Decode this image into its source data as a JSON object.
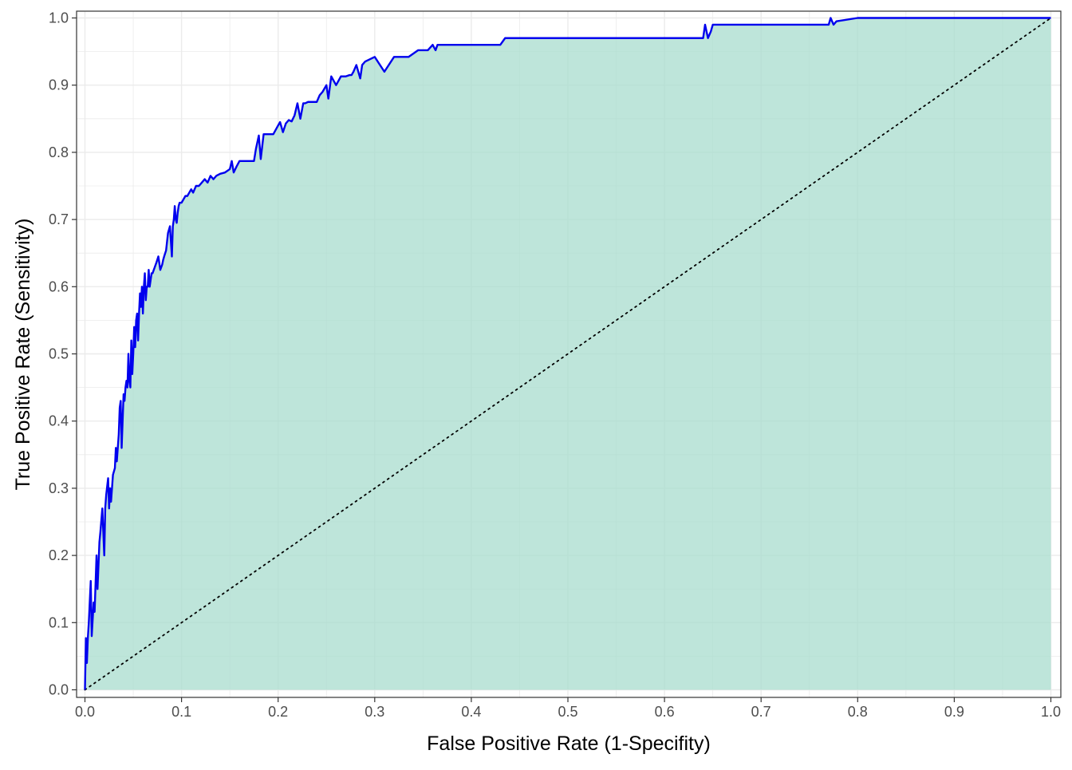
{
  "chart_data": {
    "type": "area",
    "title": "",
    "xlabel": "False Positive Rate (1-Specifity)",
    "ylabel": "True Positive Rate (Sensitivity)",
    "xlim": [
      0,
      1
    ],
    "ylim": [
      0,
      1
    ],
    "x_ticks": [
      "0.0",
      "0.1",
      "0.2",
      "0.3",
      "0.4",
      "0.5",
      "0.6",
      "0.7",
      "0.8",
      "0.9",
      "1.0"
    ],
    "y_ticks": [
      "0.0",
      "0.1",
      "0.2",
      "0.3",
      "0.4",
      "0.5",
      "0.6",
      "0.7",
      "0.8",
      "0.9",
      "1.0"
    ],
    "grid": true,
    "legend": "none",
    "colors": {
      "roc_line": "#0000ee",
      "area_fill": "#a8dccd",
      "reference_line": "#000000",
      "grid": "#ebebeb",
      "panel_border": "#333333"
    },
    "reference_line": {
      "name": "",
      "x": [
        0,
        1
      ],
      "y": [
        0,
        1
      ]
    },
    "series": [
      {
        "name": "",
        "x": [
          0,
          0.001,
          0.002,
          0.003,
          0.004,
          0.006,
          0.007,
          0.009,
          0.01,
          0.012,
          0.013,
          0.015,
          0.016,
          0.018,
          0.02,
          0.021,
          0.022,
          0.024,
          0.025,
          0.026,
          0.027,
          0.029,
          0.031,
          0.032,
          0.033,
          0.035,
          0.036,
          0.037,
          0.038,
          0.04,
          0.041,
          0.042,
          0.043,
          0.044,
          0.045,
          0.046,
          0.047,
          0.048,
          0.049,
          0.05,
          0.051,
          0.052,
          0.053,
          0.054,
          0.055,
          0.056,
          0.057,
          0.058,
          0.059,
          0.06,
          0.061,
          0.062,
          0.063,
          0.064,
          0.065,
          0.066,
          0.067,
          0.068,
          0.069,
          0.07,
          0.072,
          0.074,
          0.076,
          0.078,
          0.08,
          0.081,
          0.082,
          0.084,
          0.086,
          0.088,
          0.09,
          0.091,
          0.092,
          0.093,
          0.094,
          0.095,
          0.096,
          0.097,
          0.098,
          0.1,
          0.102,
          0.104,
          0.106,
          0.108,
          0.11,
          0.112,
          0.115,
          0.118,
          0.121,
          0.124,
          0.127,
          0.13,
          0.133,
          0.136,
          0.14,
          0.145,
          0.15,
          0.152,
          0.154,
          0.157,
          0.16,
          0.165,
          0.17,
          0.175,
          0.177,
          0.18,
          0.182,
          0.185,
          0.19,
          0.195,
          0.2,
          0.202,
          0.205,
          0.208,
          0.211,
          0.214,
          0.217,
          0.22,
          0.223,
          0.226,
          0.228,
          0.231,
          0.236,
          0.24,
          0.243,
          0.246,
          0.248,
          0.25,
          0.252,
          0.255,
          0.26,
          0.265,
          0.27,
          0.274,
          0.276,
          0.278,
          0.281,
          0.285,
          0.287,
          0.29,
          0.3,
          0.31,
          0.32,
          0.33,
          0.335,
          0.345,
          0.35,
          0.355,
          0.36,
          0.363,
          0.365,
          0.38,
          0.4,
          0.42,
          0.43,
          0.435,
          0.45,
          0.5,
          0.55,
          0.6,
          0.62,
          0.64,
          0.642,
          0.645,
          0.648,
          0.65,
          0.7,
          0.75,
          0.77,
          0.772,
          0.775,
          0.778,
          0.8,
          0.85,
          0.9,
          0.95,
          1.0
        ],
        "values": [
          0,
          0.077,
          0.04,
          0.077,
          0.1,
          0.162,
          0.08,
          0.13,
          0.116,
          0.2,
          0.15,
          0.22,
          0.235,
          0.27,
          0.2,
          0.27,
          0.29,
          0.315,
          0.27,
          0.3,
          0.28,
          0.32,
          0.33,
          0.36,
          0.34,
          0.38,
          0.42,
          0.43,
          0.36,
          0.44,
          0.43,
          0.45,
          0.46,
          0.45,
          0.5,
          0.46,
          0.45,
          0.52,
          0.47,
          0.5,
          0.54,
          0.51,
          0.55,
          0.56,
          0.52,
          0.56,
          0.59,
          0.57,
          0.6,
          0.56,
          0.6,
          0.62,
          0.58,
          0.6,
          0.6,
          0.625,
          0.6,
          0.61,
          0.62,
          0.62,
          0.628,
          0.636,
          0.645,
          0.625,
          0.633,
          0.64,
          0.645,
          0.654,
          0.68,
          0.69,
          0.645,
          0.69,
          0.7,
          0.72,
          0.7,
          0.695,
          0.71,
          0.72,
          0.725,
          0.725,
          0.73,
          0.735,
          0.735,
          0.74,
          0.745,
          0.74,
          0.75,
          0.75,
          0.755,
          0.76,
          0.755,
          0.765,
          0.76,
          0.765,
          0.768,
          0.77,
          0.775,
          0.787,
          0.77,
          0.779,
          0.787,
          0.787,
          0.787,
          0.787,
          0.805,
          0.825,
          0.79,
          0.827,
          0.827,
          0.827,
          0.84,
          0.845,
          0.83,
          0.843,
          0.848,
          0.846,
          0.855,
          0.873,
          0.85,
          0.873,
          0.873,
          0.875,
          0.875,
          0.875,
          0.885,
          0.89,
          0.895,
          0.9,
          0.88,
          0.913,
          0.9,
          0.913,
          0.913,
          0.915,
          0.915,
          0.92,
          0.93,
          0.91,
          0.93,
          0.935,
          0.942,
          0.92,
          0.942,
          0.942,
          0.942,
          0.952,
          0.952,
          0.952,
          0.96,
          0.952,
          0.96,
          0.96,
          0.96,
          0.96,
          0.96,
          0.97,
          0.97,
          0.97,
          0.97,
          0.97,
          0.97,
          0.97,
          0.99,
          0.97,
          0.98,
          0.99,
          0.99,
          0.99,
          0.99,
          1.0,
          0.99,
          0.995,
          1.0,
          1.0,
          1.0,
          1.0,
          1.0
        ]
      }
    ]
  }
}
